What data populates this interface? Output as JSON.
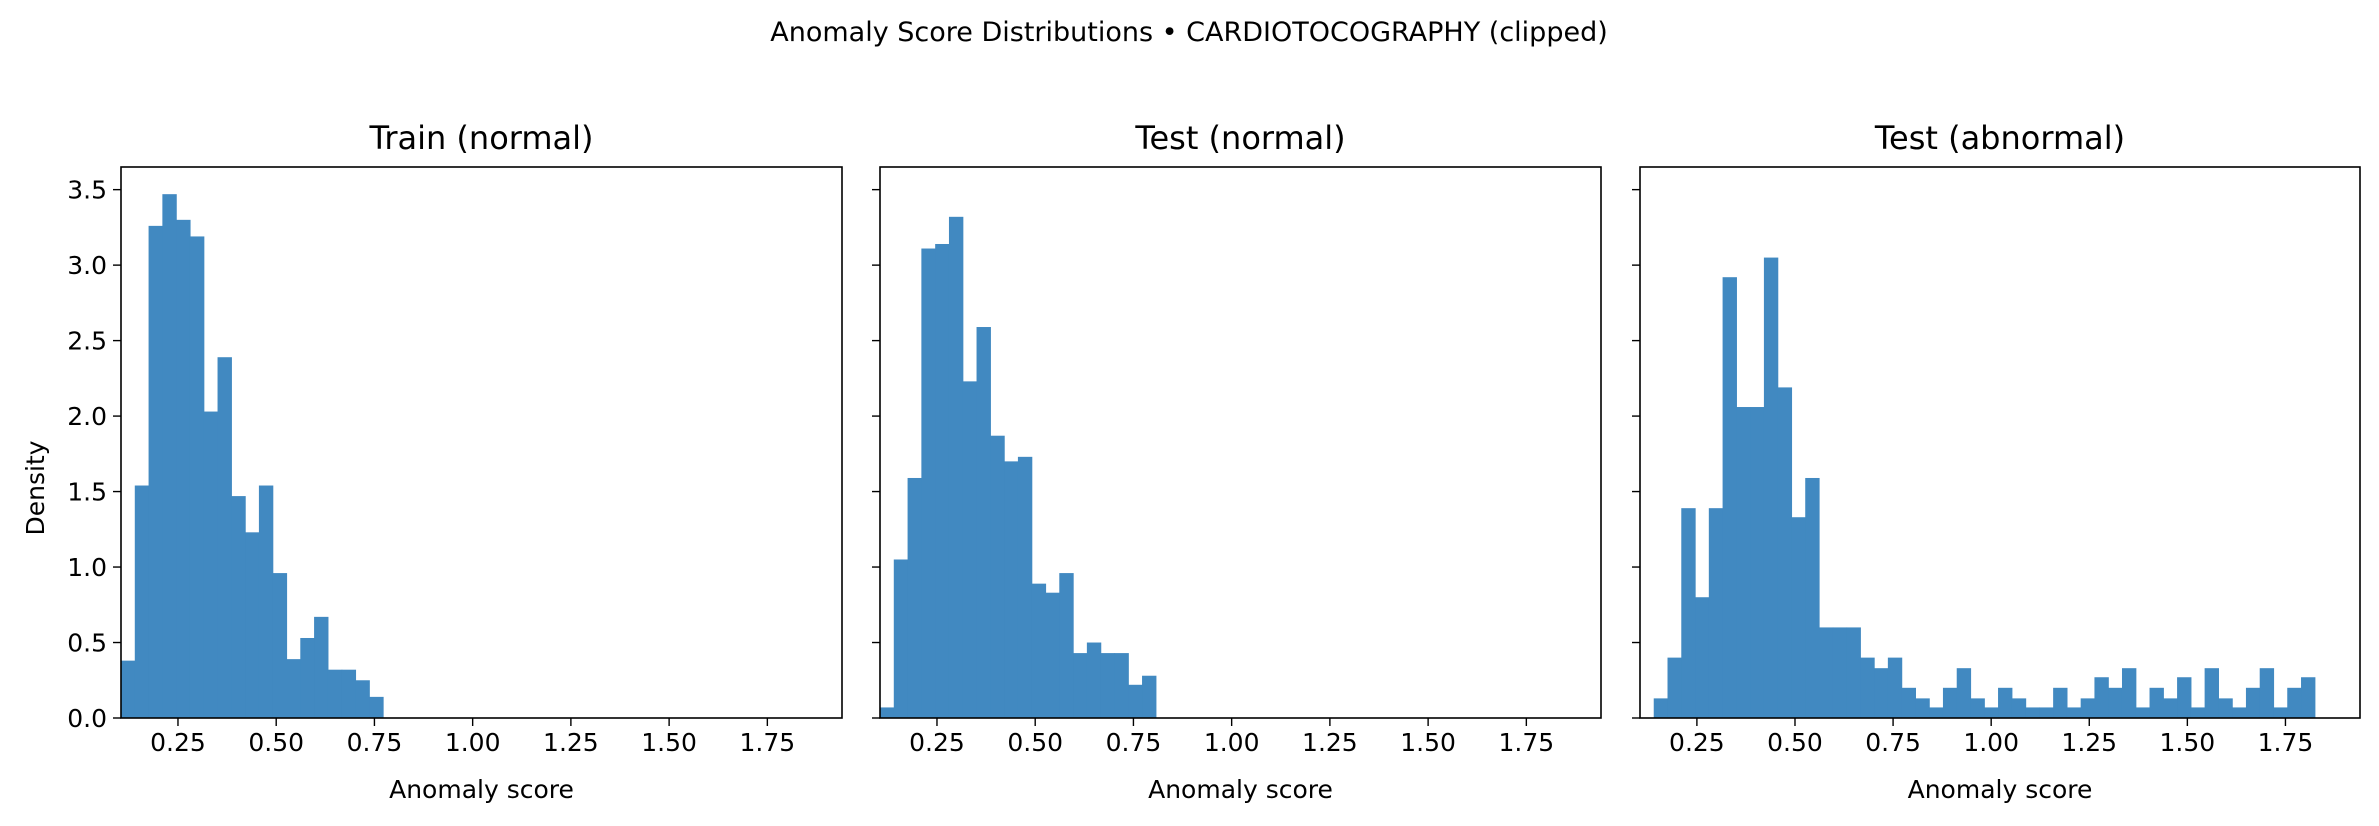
{
  "chart_data": {
    "type": "bar",
    "suptitle": "Anomaly Score Distributions • CARDIOTOCOGRAPHY (clipped)",
    "ylabel": "Density",
    "shared_y": true,
    "ylim": [
      0,
      3.65
    ],
    "yticks": [
      0.0,
      0.5,
      1.0,
      1.5,
      2.0,
      2.5,
      3.0,
      3.5
    ],
    "ytick_labels": [
      "0.0",
      "0.5",
      "1.0",
      "1.5",
      "2.0",
      "2.5",
      "3.0",
      "3.5"
    ],
    "xticks": [
      0.25,
      0.5,
      0.75,
      1.0,
      1.25,
      1.5,
      1.75
    ],
    "xtick_labels": [
      "0.25",
      "0.50",
      "0.75",
      "1.00",
      "1.25",
      "1.50",
      "1.75"
    ],
    "bar_color": "#4189c1",
    "panels": [
      {
        "title": "Train (normal)",
        "xlabel": "Anomaly score",
        "xlim": [
          0.105,
          1.94
        ],
        "bins": {
          "start": 0.105,
          "width": 0.0351,
          "density": [
            0.38,
            1.54,
            3.26,
            3.47,
            3.3,
            3.19,
            2.03,
            2.39,
            1.47,
            1.23,
            1.54,
            0.96,
            0.39,
            0.53,
            0.67,
            0.32,
            0.32,
            0.25,
            0.14
          ]
        }
      },
      {
        "title": "Test (normal)",
        "xlabel": "Anomaly score",
        "xlim": [
          0.105,
          1.94
        ],
        "bins": {
          "start": 0.105,
          "width": 0.0351,
          "density": [
            0.07,
            1.05,
            1.59,
            3.11,
            3.14,
            3.32,
            2.23,
            2.59,
            1.87,
            1.7,
            1.73,
            0.89,
            0.83,
            0.96,
            0.43,
            0.5,
            0.43,
            0.43,
            0.22,
            0.28
          ]
        }
      },
      {
        "title": "Test (abnormal)",
        "xlabel": "Anomaly score",
        "xlim": [
          0.105,
          1.94
        ],
        "bins": {
          "start": 0.14,
          "width": 0.0351,
          "density": [
            0.13,
            0.4,
            1.39,
            0.8,
            1.39,
            2.92,
            2.06,
            2.06,
            3.05,
            2.19,
            1.33,
            1.59,
            0.6,
            0.6,
            0.6,
            0.4,
            0.33,
            0.4,
            0.2,
            0.13,
            0.07,
            0.2,
            0.33,
            0.13,
            0.07,
            0.2,
            0.13,
            0.07,
            0.07,
            0.2,
            0.07,
            0.13,
            0.27,
            0.2,
            0.33,
            0.07,
            0.2,
            0.13,
            0.27,
            0.07,
            0.33,
            0.13,
            0.07,
            0.2,
            0.33,
            0.07,
            0.2,
            0.27
          ]
        }
      }
    ]
  }
}
